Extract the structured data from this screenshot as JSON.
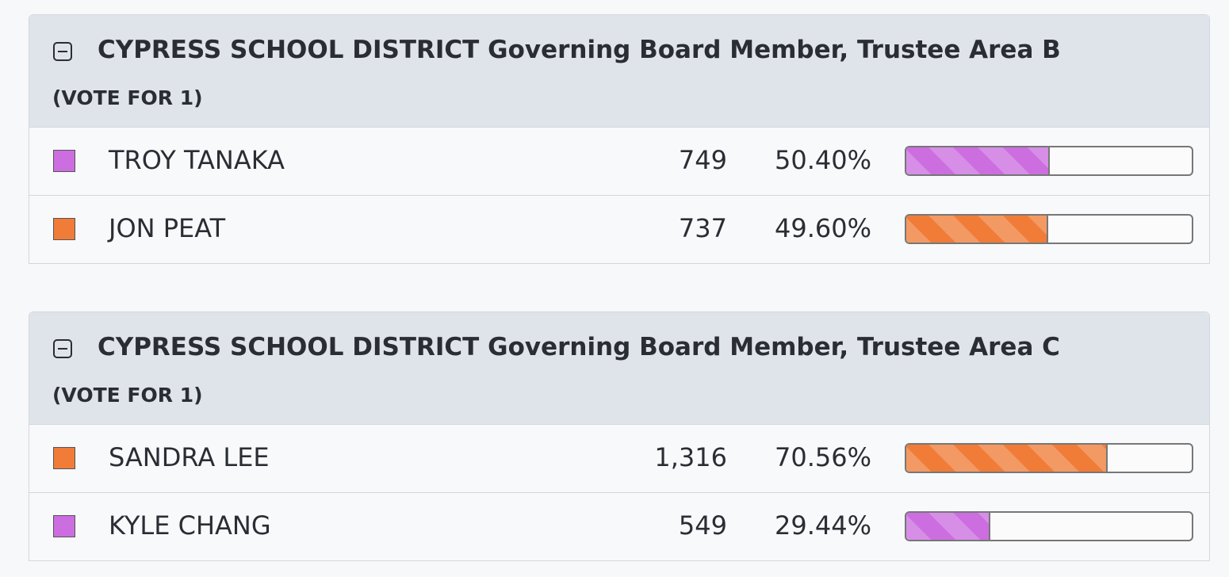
{
  "races": [
    {
      "title": "CYPRESS SCHOOL DISTRICT Governing Board Member, Trustee Area B",
      "subtitle": "(VOTE FOR 1)",
      "candidates": [
        {
          "name": "TROY TANAKA",
          "votes": "749",
          "percent": {
            "value": 50.4,
            "label": "50.40%"
          },
          "color": "#cc6ee0"
        },
        {
          "name": "JON PEAT",
          "votes": "737",
          "percent": {
            "value": 49.6,
            "label": "49.60%"
          },
          "color": "#f07c38"
        }
      ]
    },
    {
      "title": "CYPRESS SCHOOL DISTRICT Governing Board Member, Trustee Area C",
      "subtitle": "(VOTE FOR 1)",
      "candidates": [
        {
          "name": "SANDRA LEE",
          "votes": "1,316",
          "percent": {
            "value": 70.56,
            "label": "70.56%"
          },
          "color": "#f07c38"
        },
        {
          "name": "KYLE CHANG",
          "votes": "549",
          "percent": {
            "value": 29.44,
            "label": "29.44%"
          },
          "color": "#cc6ee0"
        }
      ]
    }
  ]
}
